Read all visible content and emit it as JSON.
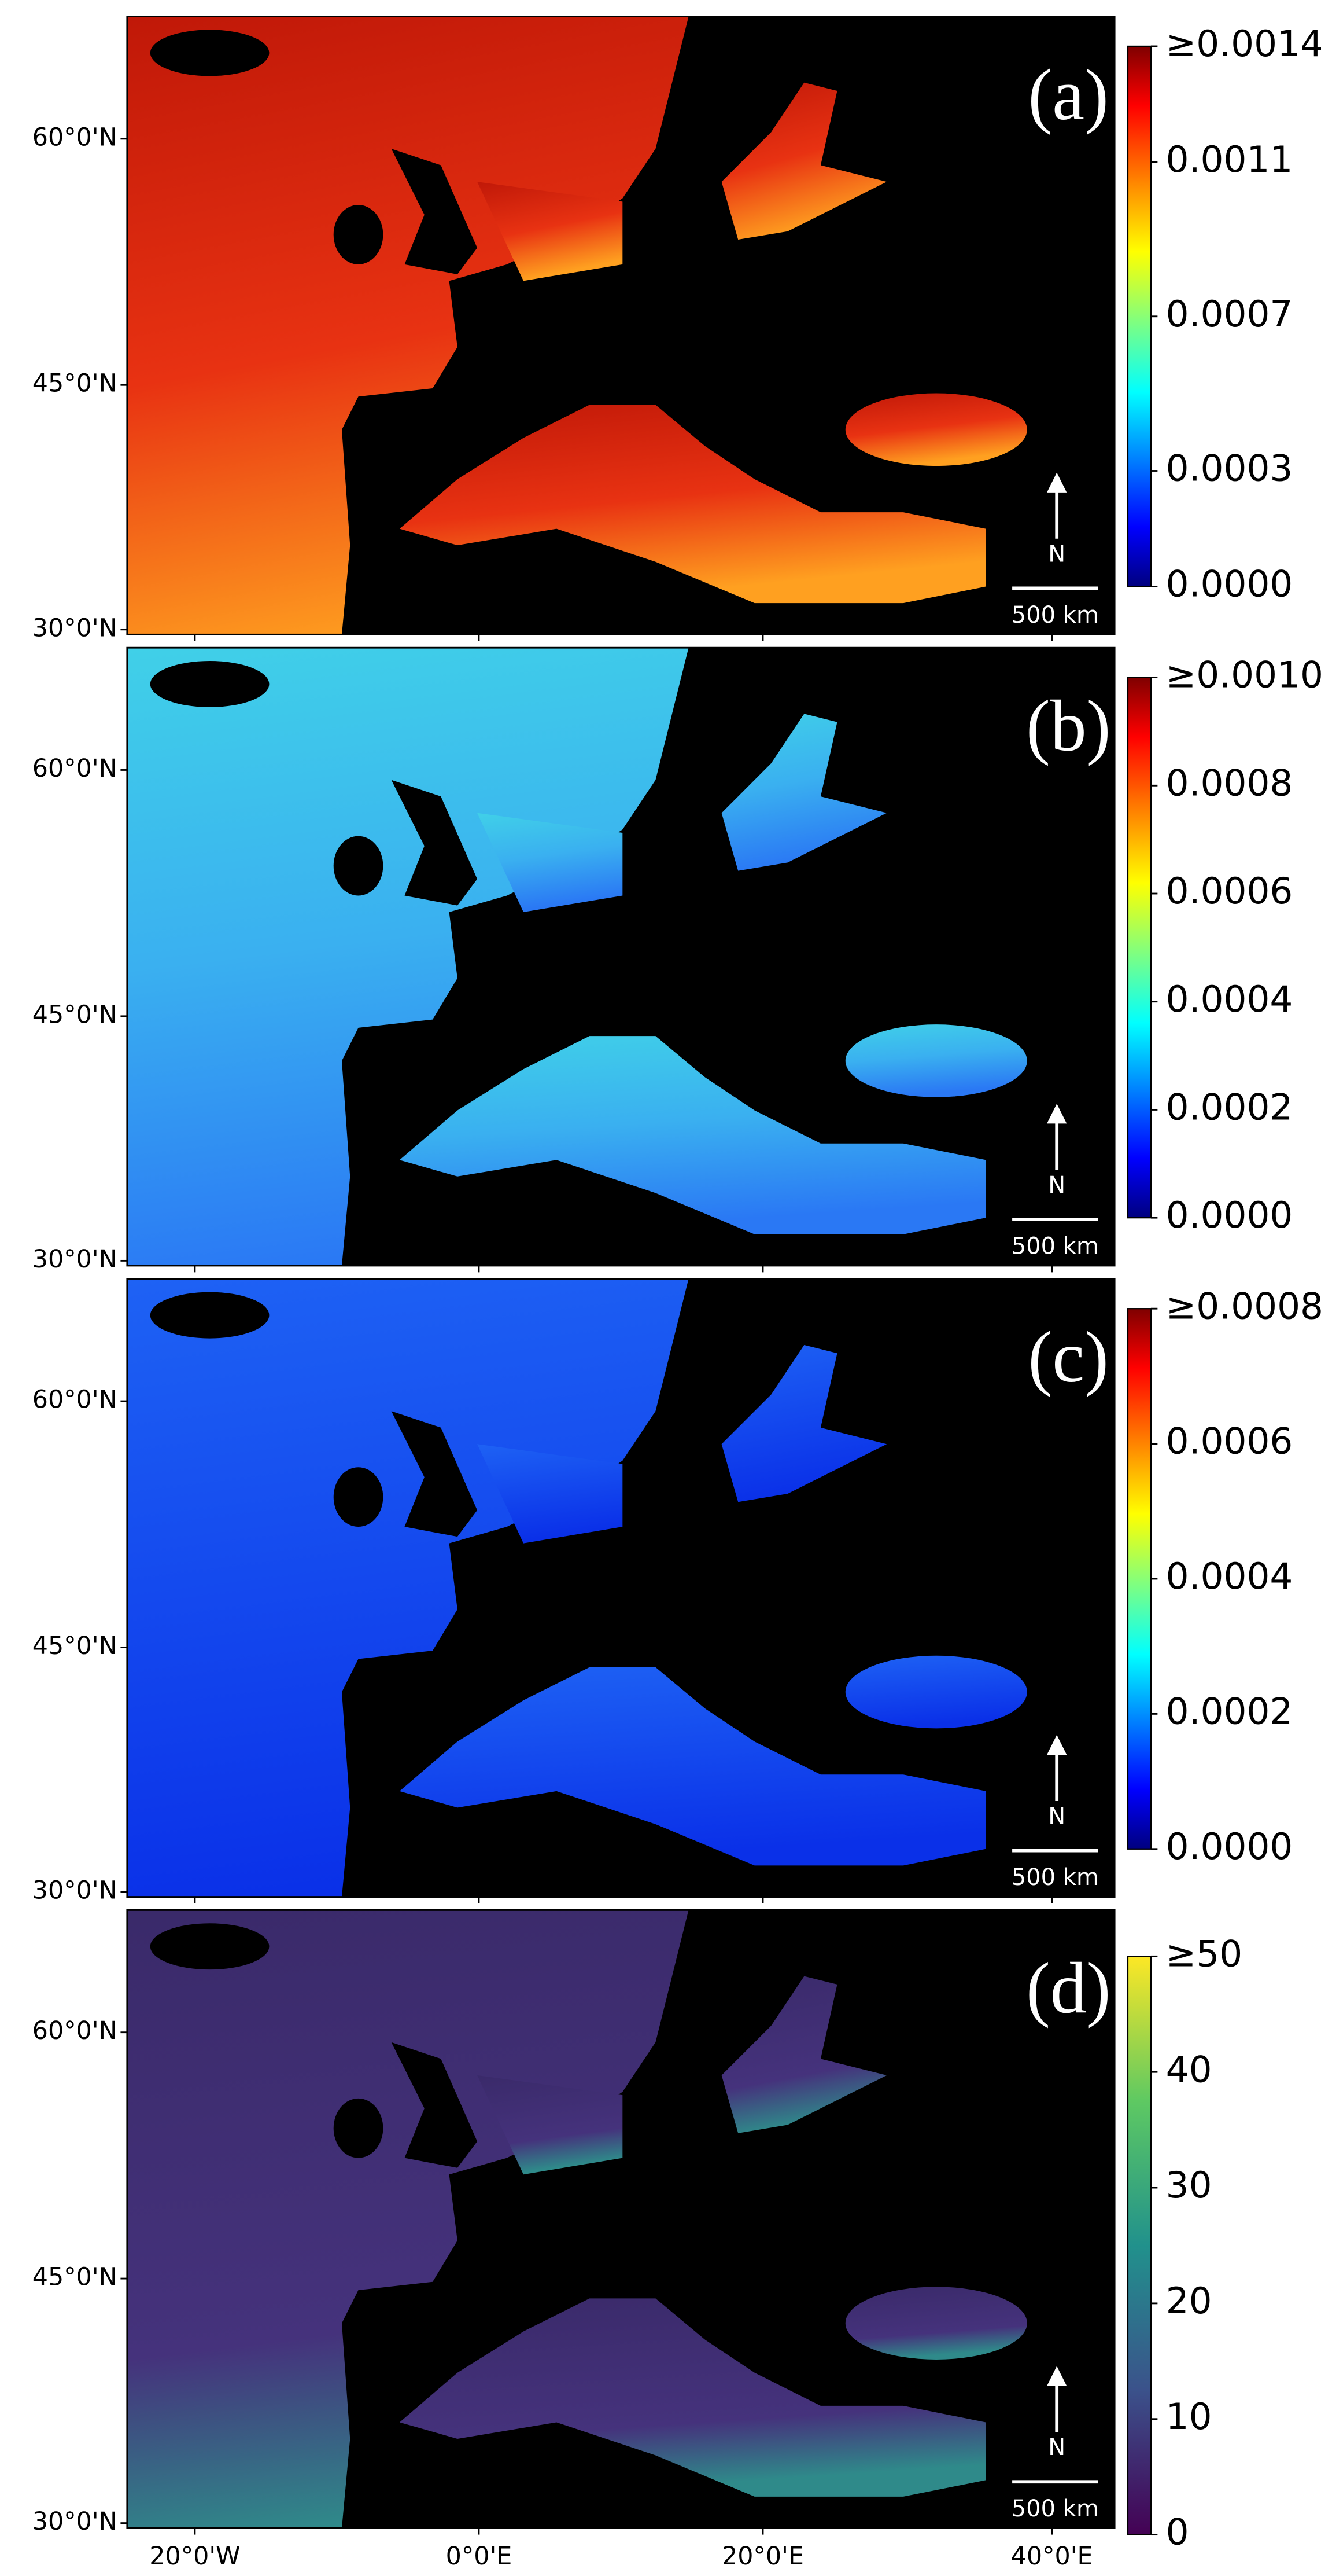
{
  "lat_labels": [
    "60°0'N",
    "45°0'N",
    "30°0'N"
  ],
  "lon_labels": [
    "20°0'W",
    "0°0'E",
    "20°0'E",
    "40°0'E"
  ],
  "panels": [
    {
      "label": "(a)",
      "colormap": "jet",
      "scale_bar": "500 km",
      "north": "N",
      "colorbar": {
        "range": [
          0,
          0.0014
        ],
        "ticks": [
          {
            "value": 0,
            "label": "0.0000"
          },
          {
            "value": 0.0003,
            "label": "0.0003"
          },
          {
            "value": 0.0007,
            "label": "0.0007"
          },
          {
            "value": 0.0011,
            "label": "0.0011"
          },
          {
            "value": 0.0014,
            "label": "≥0.0014"
          }
        ]
      }
    },
    {
      "label": "(b)",
      "colormap": "jet",
      "scale_bar": "500 km",
      "north": "N",
      "colorbar": {
        "range": [
          0,
          0.001
        ],
        "ticks": [
          {
            "value": 0,
            "label": "0.0000"
          },
          {
            "value": 0.0002,
            "label": "0.0002"
          },
          {
            "value": 0.0004,
            "label": "0.0004"
          },
          {
            "value": 0.0006,
            "label": "0.0006"
          },
          {
            "value": 0.0008,
            "label": "0.0008"
          },
          {
            "value": 0.001,
            "label": "≥0.0010"
          }
        ]
      }
    },
    {
      "label": "(c)",
      "colormap": "jet",
      "scale_bar": "500 km",
      "north": "N",
      "colorbar": {
        "range": [
          0,
          0.0008
        ],
        "ticks": [
          {
            "value": 0,
            "label": "0.0000"
          },
          {
            "value": 0.0002,
            "label": "0.0002"
          },
          {
            "value": 0.0004,
            "label": "0.0004"
          },
          {
            "value": 0.0006,
            "label": "0.0006"
          },
          {
            "value": 0.0008,
            "label": "≥0.0008"
          }
        ]
      }
    },
    {
      "label": "(d)",
      "colormap": "viridis",
      "scale_bar": "500 km",
      "north": "N",
      "colorbar": {
        "range": [
          0,
          50
        ],
        "ticks": [
          0,
          10,
          20,
          30,
          40,
          {
            "value": 50,
            "label": "≥50"
          }
        ]
      }
    }
  ]
}
